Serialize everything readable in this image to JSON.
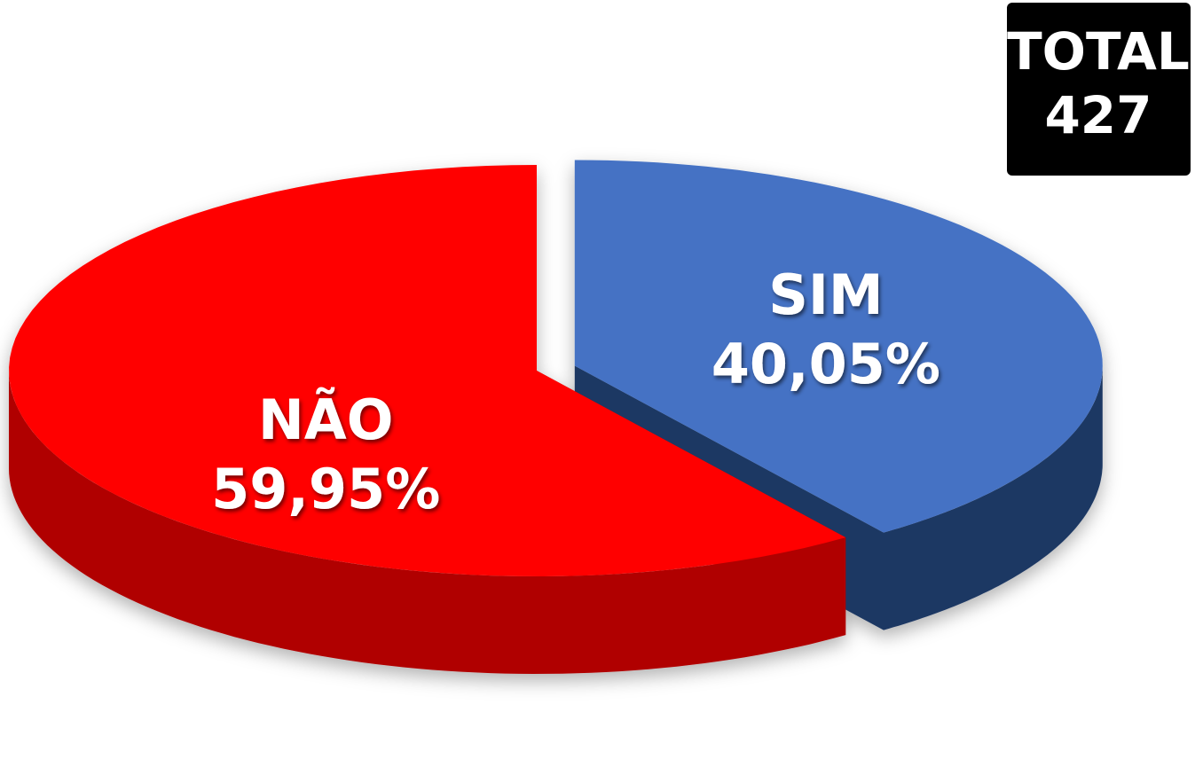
{
  "chart_data": {
    "type": "pie",
    "categories": [
      "SIM",
      "NÃO"
    ],
    "values": [
      40.05,
      59.95
    ],
    "value_labels": [
      "40,05%",
      "59,95%"
    ],
    "colors": [
      "#4472c4",
      "#ff0000"
    ],
    "side_colors": [
      "#1f3864",
      "#b00000"
    ],
    "total": {
      "label": "TOTAL",
      "value": 427
    }
  }
}
